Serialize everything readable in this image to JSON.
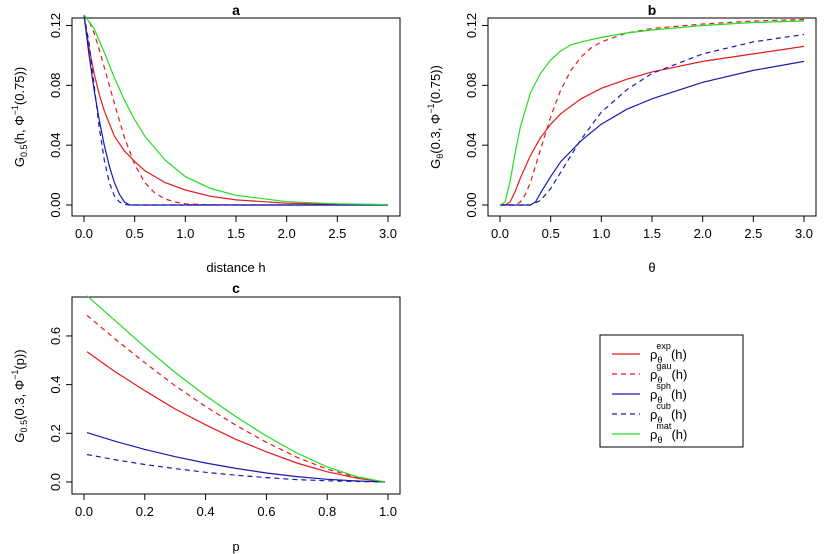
{
  "colors": {
    "red": "#e31a1c",
    "blue": "#1a1ab0",
    "green": "#22dd22"
  },
  "chart_data": [
    {
      "id": "a",
      "type": "line",
      "title": "a",
      "xlabel": "distance h",
      "ylabel": {
        "main": "G",
        "sub": "0.5",
        "rest": "(h, Φ",
        "sup": "−1",
        "tail": "(0.75))"
      },
      "xlim": [
        0,
        3
      ],
      "ylim": [
        0,
        0.125
      ],
      "xticks": [
        "0.0",
        "0.5",
        "1.0",
        "1.5",
        "2.0",
        "2.5",
        "3.0"
      ],
      "xtick_values": [
        0,
        0.5,
        1,
        1.5,
        2,
        2.5,
        3
      ],
      "yticks": [
        "0.00",
        "0.04",
        "0.08",
        "0.12"
      ],
      "ytick_values": [
        0,
        0.04,
        0.08,
        0.12
      ],
      "series": [
        {
          "name": "exp",
          "color": "#e31a1c",
          "dash": false,
          "x": [
            0,
            0.05,
            0.1,
            0.15,
            0.2,
            0.3,
            0.4,
            0.5,
            0.6,
            0.8,
            1.0,
            1.25,
            1.5,
            2.0,
            2.5,
            3.0
          ],
          "y": [
            0.127,
            0.105,
            0.088,
            0.074,
            0.063,
            0.046,
            0.036,
            0.029,
            0.023,
            0.015,
            0.01,
            0.0058,
            0.0034,
            0.0012,
            0.0004,
            0.0001
          ]
        },
        {
          "name": "gau",
          "color": "#e31a1c",
          "dash": true,
          "x": [
            0,
            0.05,
            0.1,
            0.15,
            0.2,
            0.25,
            0.3,
            0.4,
            0.5,
            0.6,
            0.7,
            0.8,
            0.9,
            1.0,
            1.2,
            1.5,
            3.0
          ],
          "y": [
            0.127,
            0.123,
            0.115,
            0.104,
            0.092,
            0.08,
            0.068,
            0.045,
            0.027,
            0.015,
            0.008,
            0.004,
            0.002,
            0.0008,
            0.0002,
            0.0,
            0.0
          ]
        },
        {
          "name": "sph",
          "color": "#1a1ab0",
          "dash": false,
          "x": [
            0,
            0.05,
            0.1,
            0.15,
            0.2,
            0.25,
            0.3,
            0.35,
            0.4,
            0.45,
            0.5,
            1.0,
            3.0
          ],
          "y": [
            0.127,
            0.1,
            0.077,
            0.057,
            0.04,
            0.026,
            0.015,
            0.007,
            0.002,
            0.0,
            0.0,
            0.0,
            0.0
          ]
        },
        {
          "name": "cub",
          "color": "#1a1ab0",
          "dash": true,
          "x": [
            0,
            0.05,
            0.1,
            0.15,
            0.2,
            0.25,
            0.3,
            0.35,
            0.4,
            0.45,
            1.0,
            3.0
          ],
          "y": [
            0.127,
            0.108,
            0.08,
            0.052,
            0.03,
            0.015,
            0.006,
            0.002,
            0.0004,
            0.0,
            0.0,
            0.0
          ]
        },
        {
          "name": "mat",
          "color": "#22dd22",
          "dash": false,
          "x": [
            0,
            0.1,
            0.2,
            0.3,
            0.4,
            0.5,
            0.6,
            0.8,
            1.0,
            1.25,
            1.5,
            2.0,
            2.5,
            3.0
          ],
          "y": [
            0.127,
            0.118,
            0.102,
            0.085,
            0.07,
            0.057,
            0.046,
            0.03,
            0.019,
            0.011,
            0.0065,
            0.0022,
            0.0008,
            0.0003
          ]
        }
      ]
    },
    {
      "id": "b",
      "type": "line",
      "title": "b",
      "xlabel": "θ",
      "ylabel": {
        "main": "G",
        "sub": "θ",
        "rest": "(0.3, Φ",
        "sup": "−1",
        "tail": "(0.75))"
      },
      "xlim": [
        0,
        3
      ],
      "ylim": [
        0,
        0.125
      ],
      "xticks": [
        "0.0",
        "0.5",
        "1.0",
        "1.5",
        "2.0",
        "2.5",
        "3.0"
      ],
      "xtick_values": [
        0,
        0.5,
        1,
        1.5,
        2,
        2.5,
        3
      ],
      "yticks": [
        "0.00",
        "0.04",
        "0.08",
        "0.12"
      ],
      "ytick_values": [
        0,
        0.04,
        0.08,
        0.12
      ],
      "series": [
        {
          "name": "exp",
          "color": "#e31a1c",
          "dash": false,
          "x": [
            0.0,
            0.05,
            0.1,
            0.15,
            0.2,
            0.3,
            0.4,
            0.5,
            0.6,
            0.8,
            1.0,
            1.25,
            1.5,
            2.0,
            2.5,
            3.0
          ],
          "y": [
            0.0,
            0.0,
            0.002,
            0.009,
            0.018,
            0.033,
            0.045,
            0.054,
            0.061,
            0.071,
            0.078,
            0.084,
            0.089,
            0.096,
            0.101,
            0.106
          ]
        },
        {
          "name": "gau",
          "color": "#e31a1c",
          "dash": true,
          "x": [
            0.0,
            0.1,
            0.15,
            0.2,
            0.25,
            0.3,
            0.4,
            0.5,
            0.6,
            0.7,
            0.8,
            0.9,
            1.0,
            1.25,
            1.5,
            2.0,
            2.5,
            3.0
          ],
          "y": [
            0.0,
            0.0,
            0.0,
            0.002,
            0.007,
            0.015,
            0.037,
            0.059,
            0.077,
            0.09,
            0.099,
            0.105,
            0.109,
            0.115,
            0.118,
            0.121,
            0.123,
            0.124
          ]
        },
        {
          "name": "sph",
          "color": "#1a1ab0",
          "dash": false,
          "x": [
            0.0,
            0.3,
            0.35,
            0.4,
            0.5,
            0.6,
            0.8,
            1.0,
            1.25,
            1.5,
            2.0,
            2.5,
            3.0
          ],
          "y": [
            0.0,
            0.0,
            0.002,
            0.008,
            0.019,
            0.029,
            0.043,
            0.054,
            0.064,
            0.071,
            0.082,
            0.09,
            0.096
          ]
        },
        {
          "name": "cub",
          "color": "#1a1ab0",
          "dash": true,
          "x": [
            0.0,
            0.3,
            0.4,
            0.5,
            0.6,
            0.7,
            0.8,
            1.0,
            1.25,
            1.5,
            2.0,
            2.5,
            3.0
          ],
          "y": [
            0.0,
            0.0,
            0.003,
            0.011,
            0.022,
            0.033,
            0.044,
            0.062,
            0.077,
            0.088,
            0.101,
            0.109,
            0.114
          ]
        },
        {
          "name": "mat",
          "color": "#22dd22",
          "dash": false,
          "x": [
            0.0,
            0.05,
            0.1,
            0.15,
            0.2,
            0.3,
            0.4,
            0.5,
            0.6,
            0.7,
            0.8,
            1.0,
            1.25,
            1.5,
            2.0,
            2.5,
            3.0
          ],
          "y": [
            0.0,
            0.002,
            0.016,
            0.035,
            0.052,
            0.075,
            0.088,
            0.097,
            0.103,
            0.107,
            0.109,
            0.112,
            0.115,
            0.117,
            0.12,
            0.122,
            0.123
          ]
        }
      ]
    },
    {
      "id": "c",
      "type": "line",
      "title": "c",
      "xlabel": "p",
      "ylabel": {
        "main": "G",
        "sub": "0.5",
        "rest": "(0.3, Φ",
        "sup": "−1",
        "tail": "(p))"
      },
      "xlim": [
        0,
        1
      ],
      "ylim": [
        0,
        0.76
      ],
      "xticks": [
        "0.0",
        "0.2",
        "0.4",
        "0.6",
        "0.8",
        "1.0"
      ],
      "xtick_values": [
        0,
        0.2,
        0.4,
        0.6,
        0.8,
        1.0
      ],
      "yticks": [
        "0.0",
        "0.2",
        "0.4",
        "0.6"
      ],
      "ytick_values": [
        0,
        0.2,
        0.4,
        0.6
      ],
      "series": [
        {
          "name": "exp",
          "color": "#e31a1c",
          "dash": false,
          "x": [
            0.01,
            0.1,
            0.2,
            0.3,
            0.4,
            0.5,
            0.6,
            0.7,
            0.8,
            0.9,
            0.99
          ],
          "y": [
            0.535,
            0.455,
            0.375,
            0.3,
            0.235,
            0.175,
            0.124,
            0.078,
            0.042,
            0.015,
            0.0
          ]
        },
        {
          "name": "gau",
          "color": "#e31a1c",
          "dash": true,
          "x": [
            0.01,
            0.1,
            0.2,
            0.3,
            0.4,
            0.5,
            0.6,
            0.7,
            0.8,
            0.9,
            0.99
          ],
          "y": [
            0.685,
            0.59,
            0.49,
            0.395,
            0.31,
            0.233,
            0.163,
            0.102,
            0.053,
            0.018,
            0.0
          ]
        },
        {
          "name": "sph",
          "color": "#1a1ab0",
          "dash": false,
          "x": [
            0.01,
            0.1,
            0.2,
            0.3,
            0.4,
            0.5,
            0.6,
            0.7,
            0.8,
            0.9,
            0.99
          ],
          "y": [
            0.203,
            0.168,
            0.134,
            0.104,
            0.078,
            0.056,
            0.037,
            0.022,
            0.011,
            0.004,
            0.0
          ]
        },
        {
          "name": "cub",
          "color": "#1a1ab0",
          "dash": true,
          "x": [
            0.01,
            0.1,
            0.2,
            0.3,
            0.4,
            0.5,
            0.6,
            0.7,
            0.8,
            0.9,
            0.99
          ],
          "y": [
            0.113,
            0.092,
            0.072,
            0.055,
            0.04,
            0.028,
            0.018,
            0.01,
            0.005,
            0.002,
            0.0
          ]
        },
        {
          "name": "mat",
          "color": "#22dd22",
          "dash": false,
          "x": [
            0.01,
            0.1,
            0.2,
            0.3,
            0.4,
            0.5,
            0.6,
            0.7,
            0.8,
            0.9,
            0.99
          ],
          "y": [
            0.765,
            0.665,
            0.555,
            0.45,
            0.355,
            0.268,
            0.189,
            0.119,
            0.062,
            0.021,
            0.0
          ]
        }
      ]
    }
  ],
  "legend": [
    {
      "sym": "ρ",
      "sub": "θ",
      "sup": "exp",
      "tail": "(h)",
      "color": "#e31a1c",
      "dash": false
    },
    {
      "sym": "ρ",
      "sub": "θ",
      "sup": "gau",
      "tail": "(h)",
      "color": "#e31a1c",
      "dash": true
    },
    {
      "sym": "ρ",
      "sub": "θ",
      "sup": "sph",
      "tail": "(h)",
      "color": "#1a1ab0",
      "dash": false
    },
    {
      "sym": "ρ",
      "sub": "θ",
      "sup": "cub",
      "tail": "(h)",
      "color": "#1a1ab0",
      "dash": true
    },
    {
      "sym": "ρ",
      "sub": "θ",
      "sup": "mat",
      "tail": "(h)",
      "color": "#22dd22",
      "dash": false
    }
  ]
}
